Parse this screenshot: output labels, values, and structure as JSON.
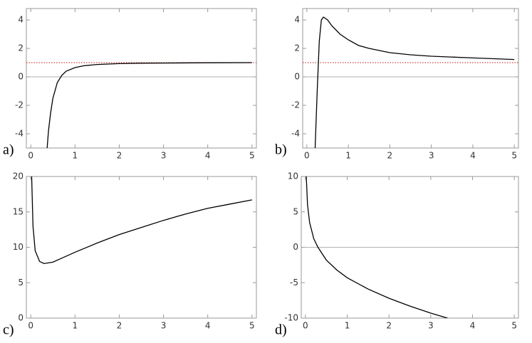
{
  "chart_data": [
    {
      "type": "line",
      "label": "a)",
      "color": "#000000",
      "reference_line": 1,
      "reference_color": "#d04040",
      "x": [
        0.37,
        0.4,
        0.45,
        0.5,
        0.6,
        0.7,
        0.8,
        1,
        1.2,
        1.5,
        2,
        2.5,
        3,
        4,
        5
      ],
      "values": [
        -5,
        -3.8,
        -2.5,
        -1.5,
        -0.4,
        0.1,
        0.4,
        0.65,
        0.78,
        0.87,
        0.93,
        0.96,
        0.97,
        0.99,
        1.0
      ],
      "xlim": [
        -0.1,
        5.1
      ],
      "ylim": [
        -5,
        4.8
      ],
      "xticks": [
        0,
        1,
        2,
        3,
        4,
        5
      ],
      "yticks": [
        -4,
        -2,
        0,
        2,
        4
      ]
    },
    {
      "type": "line",
      "label": "b)",
      "color": "#000000",
      "reference_line": 1,
      "reference_color": "#d04040",
      "x": [
        0.2,
        0.25,
        0.3,
        0.35,
        0.4,
        0.5,
        0.6,
        0.8,
        1,
        1.25,
        1.5,
        2,
        2.5,
        3,
        4,
        5
      ],
      "values": [
        -5,
        -1,
        2.5,
        4.0,
        4.2,
        4.0,
        3.6,
        3.0,
        2.6,
        2.2,
        2.0,
        1.7,
        1.55,
        1.45,
        1.33,
        1.22
      ],
      "xlim": [
        -0.1,
        5.1
      ],
      "ylim": [
        -5,
        4.8
      ],
      "xticks": [
        0,
        1,
        2,
        3,
        4,
        5
      ],
      "yticks": [
        -4,
        -2,
        0,
        2,
        4
      ]
    },
    {
      "type": "line",
      "label": "c)",
      "color": "#000000",
      "x": [
        0.02,
        0.05,
        0.1,
        0.2,
        0.3,
        0.5,
        0.75,
        1,
        1.5,
        2,
        2.5,
        3,
        3.5,
        4,
        4.5,
        5
      ],
      "values": [
        20,
        13,
        9.5,
        8,
        7.7,
        7.9,
        8.6,
        9.3,
        10.6,
        11.8,
        12.8,
        13.8,
        14.7,
        15.5,
        16.1,
        16.7
      ],
      "xlim": [
        -0.1,
        5.1
      ],
      "ylim": [
        0,
        20
      ],
      "xticks": [
        0,
        1,
        2,
        3,
        4,
        5
      ],
      "yticks": [
        0,
        5,
        10,
        15,
        20
      ]
    },
    {
      "type": "line",
      "label": "d)",
      "color": "#000000",
      "x": [
        0.02,
        0.05,
        0.1,
        0.2,
        0.3,
        0.5,
        0.75,
        1,
        1.5,
        2,
        2.5,
        3,
        3.4
      ],
      "values": [
        10,
        6,
        3.5,
        1.2,
        0,
        -1.8,
        -3.2,
        -4.3,
        -5.9,
        -7.2,
        -8.3,
        -9.3,
        -10
      ],
      "xlim": [
        -0.1,
        5.1
      ],
      "ylim": [
        -10,
        10
      ],
      "xticks": [
        0,
        1,
        2,
        3,
        4,
        5
      ],
      "yticks": [
        -10,
        -5,
        0,
        5,
        10
      ]
    }
  ]
}
